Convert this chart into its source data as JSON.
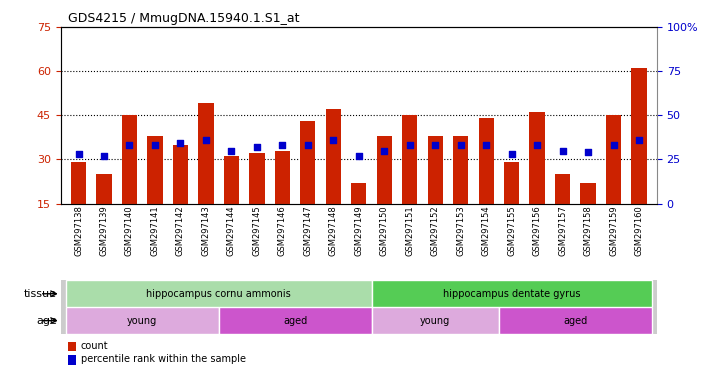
{
  "title": "GDS4215 / MmugDNA.15940.1.S1_at",
  "samples": [
    "GSM297138",
    "GSM297139",
    "GSM297140",
    "GSM297141",
    "GSM297142",
    "GSM297143",
    "GSM297144",
    "GSM297145",
    "GSM297146",
    "GSM297147",
    "GSM297148",
    "GSM297149",
    "GSM297150",
    "GSM297151",
    "GSM297152",
    "GSM297153",
    "GSM297154",
    "GSM297155",
    "GSM297156",
    "GSM297157",
    "GSM297158",
    "GSM297159",
    "GSM297160"
  ],
  "counts": [
    29,
    25,
    45,
    38,
    35,
    49,
    31,
    32,
    33,
    43,
    47,
    22,
    38,
    45,
    38,
    38,
    44,
    29,
    46,
    25,
    22,
    45,
    61
  ],
  "percentile_ranks": [
    28,
    27,
    33,
    33,
    34,
    36,
    30,
    32,
    33,
    33,
    36,
    27,
    30,
    33,
    33,
    33,
    33,
    28,
    33,
    30,
    29,
    33,
    36
  ],
  "ylim_left": [
    15,
    75
  ],
  "ylim_right": [
    0,
    100
  ],
  "yticks_left": [
    15,
    30,
    45,
    60,
    75
  ],
  "yticks_right": [
    0,
    25,
    50,
    75,
    100
  ],
  "bar_color": "#cc2200",
  "dot_color": "#0000cc",
  "tissue_groups": [
    {
      "label": "hippocampus cornu ammonis",
      "start": 0,
      "end": 12,
      "color": "#aaddaa"
    },
    {
      "label": "hippocampus dentate gyrus",
      "start": 12,
      "end": 23,
      "color": "#55cc55"
    }
  ],
  "age_groups": [
    {
      "label": "young",
      "start": 0,
      "end": 6,
      "color": "#ddaadd"
    },
    {
      "label": "aged",
      "start": 6,
      "end": 12,
      "color": "#cc55cc"
    },
    {
      "label": "young",
      "start": 12,
      "end": 17,
      "color": "#ddaadd"
    },
    {
      "label": "aged",
      "start": 17,
      "end": 23,
      "color": "#cc55cc"
    }
  ],
  "tissue_label": "tissue",
  "age_label": "age",
  "legend_count_label": "count",
  "legend_pct_label": "percentile rank within the sample",
  "bg_color": "#ffffff",
  "plot_bg_color": "#ffffff"
}
